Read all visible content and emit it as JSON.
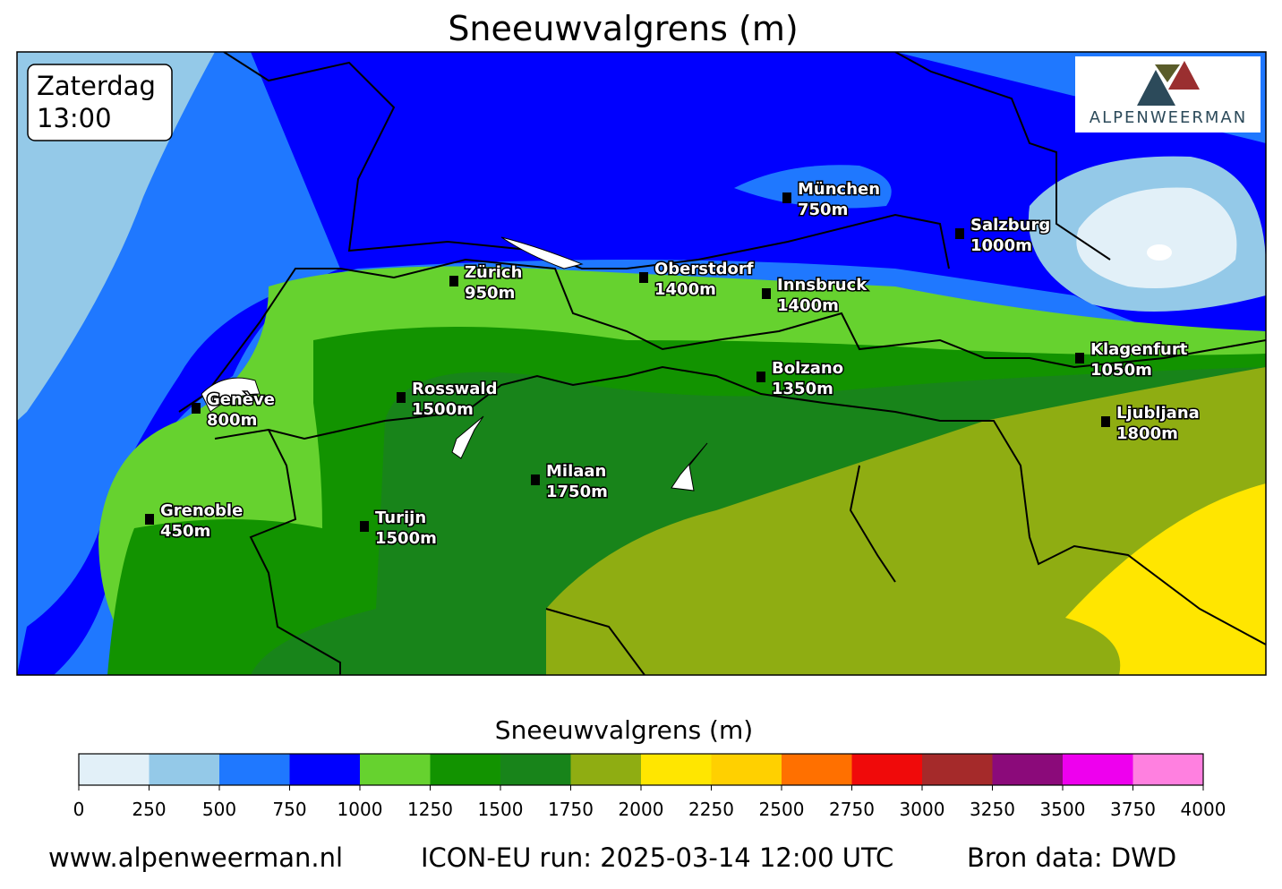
{
  "title": "Sneeuwvalgrens (m)",
  "time_box": {
    "day": "Zaterdag",
    "time": "13:00"
  },
  "logo": "ALPENWEERMAN",
  "cities": [
    {
      "name": "München",
      "label": "750m"
    },
    {
      "name": "Salzburg",
      "label": "1000m"
    },
    {
      "name": "Zürich",
      "label": "950m"
    },
    {
      "name": "Oberstdorf",
      "label": "1400m"
    },
    {
      "name": "Innsbruck",
      "label": "1400m"
    },
    {
      "name": "Genève",
      "label": "800m"
    },
    {
      "name": "Rosswald",
      "label": "1500m"
    },
    {
      "name": "Bolzano",
      "label": "1350m"
    },
    {
      "name": "Klagenfurt",
      "label": "1050m"
    },
    {
      "name": "Ljubljana",
      "label": "1800m"
    },
    {
      "name": "Milaan",
      "label": "1750m"
    },
    {
      "name": "Grenoble",
      "label": "450m"
    },
    {
      "name": "Turijn",
      "label": "1500m"
    }
  ],
  "colorbar": {
    "label": "Sneeuwvalgrens (m)",
    "ticks": [
      0,
      250,
      500,
      750,
      1000,
      1250,
      1500,
      1750,
      2000,
      2250,
      2500,
      2750,
      3000,
      3250,
      3500,
      3750,
      4000
    ],
    "colors": [
      "#e2f0f8",
      "#94c9e8",
      "#1f78ff",
      "#0000ff",
      "#66d22f",
      "#129300",
      "#18841a",
      "#8fad12",
      "#ffe600",
      "#ffd000",
      "#ff7000",
      "#f00a0a",
      "#a52a2a",
      "#8b0a7a",
      "#ee00ee",
      "#ff80e0"
    ]
  },
  "footer": {
    "site": "www.alpenweerman.nl",
    "run": "ICON-EU run: 2025-03-14 12:00 UTC",
    "source": "Bron data: DWD"
  }
}
